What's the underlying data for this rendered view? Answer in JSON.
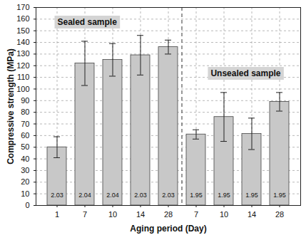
{
  "chart_data": {
    "type": "bar",
    "x_label": "Aging period (Day)",
    "y_label": "Compressive strength (MPa)",
    "color": "#c8c8c8",
    "grid": true,
    "ylim": [
      0,
      170
    ],
    "yticks": [
      0,
      10,
      20,
      30,
      40,
      50,
      60,
      70,
      80,
      90,
      100,
      110,
      120,
      130,
      140,
      150,
      160,
      170
    ],
    "groups": [
      {
        "label": "Sealed sample",
        "categories": [
          "1",
          "7",
          "10",
          "14",
          "28"
        ],
        "values": [
          50,
          122,
          125,
          129,
          136
        ],
        "errors": [
          9,
          19,
          14,
          17,
          6
        ],
        "bar_texts": [
          "2.03",
          "2.04",
          "2.04",
          "2.03",
          "2.03"
        ]
      },
      {
        "label": "Unsealed sample",
        "categories": [
          "7",
          "10",
          "14",
          "28"
        ],
        "values": [
          61,
          76,
          61.5,
          89
        ],
        "errors": [
          4,
          21,
          13.5,
          8
        ],
        "bar_texts": [
          "1.95",
          "1.95",
          "1.95",
          "1.95"
        ]
      }
    ]
  }
}
